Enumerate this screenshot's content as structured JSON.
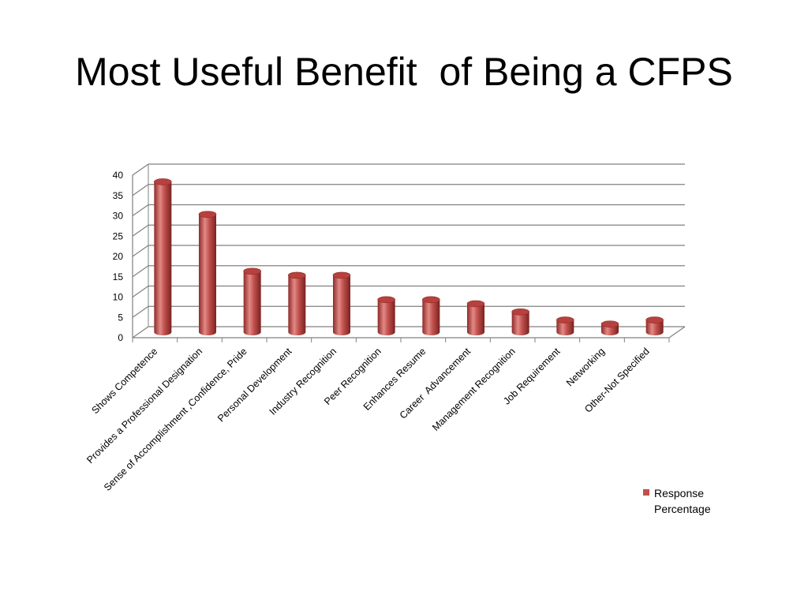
{
  "slide": {
    "title": "Most Useful Benefit  of Being a CFPS"
  },
  "chart_data": {
    "type": "bar",
    "categories": [
      "Shows Competence",
      "Provides a Professional Designation",
      "Sense of Accomplishment ,Confidence, Pride",
      "Personal Development",
      "Industry Recognition",
      "Peer Recognition",
      "Enhances Resume",
      "Career  Advancement",
      "Management Recognition",
      "Job Requirement",
      "Networking",
      "Other-Not Specified"
    ],
    "series": [
      {
        "name": "Response Percentage",
        "values": [
          37,
          29,
          15,
          14,
          14,
          8,
          8,
          7,
          5,
          3,
          2,
          3
        ]
      }
    ],
    "yticks": [
      "0",
      "5",
      "10",
      "15",
      "20",
      "25",
      "30",
      "35",
      "40"
    ],
    "ylim": [
      0,
      40
    ],
    "grid": true,
    "legend": "right",
    "colors": {
      "bar": "#c0504d",
      "bar_dark": "#8e2a28",
      "bar_light": "#e28a86",
      "grid": "#808080"
    }
  }
}
